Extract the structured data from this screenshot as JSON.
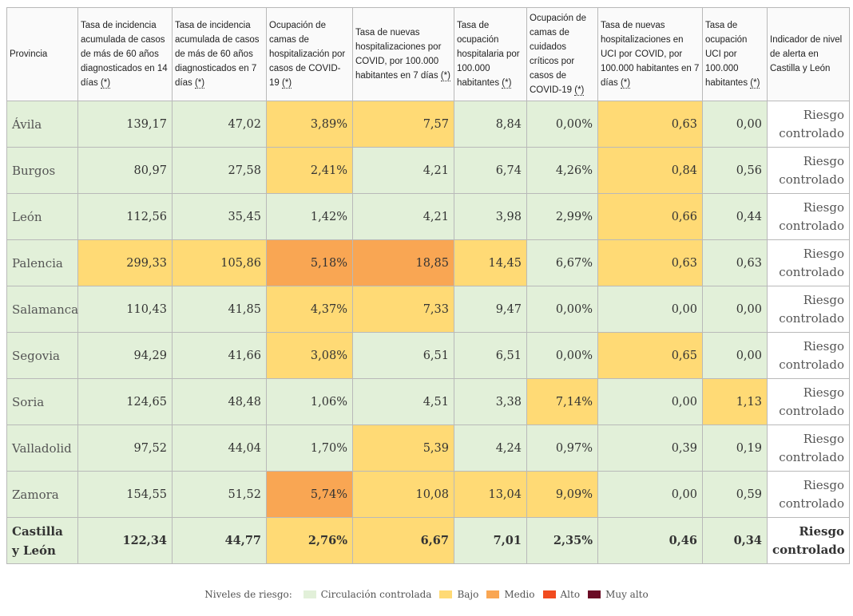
{
  "colors": {
    "green": "#e2f0d9",
    "yellow": "#ffda75",
    "orange": "#f9a653",
    "red": "#f14b1f",
    "darkred": "#6b0b25"
  },
  "header": {
    "provincia": "Provincia",
    "col1": "Tasa de incidencia acumulada de casos de más de 60 años diagnosticados en 14 días",
    "col2": "Tasa de incidencia acumulada de casos de más de 60 años diagnosticados en 7 días",
    "col3": "Ocupación de camas de hospitalización por casos de COVID-19",
    "col4": "Tasa de nuevas hospitalizaciones por COVID, por 100.000 habitantes en 7 días",
    "col5": "Tasa de ocupación hospitalaria por 100.000 habitantes",
    "col6": "Ocupación de camas de cuidados críticos por casos de COVID-19",
    "col7": "Tasa de nuevas hospitalizaciones en UCI por COVID, por 100.000 habitantes en 7 días",
    "col8": "Tasa de ocupación UCI por 100.000 habitantes",
    "alerta": "Indicador de nivel de alerta en Castilla y León",
    "note_mark": "(*)"
  },
  "rows": [
    {
      "provincia": "Ávila",
      "values": [
        "139,17",
        "47,02",
        "3,89%",
        "7,57",
        "8,84",
        "0,00%",
        "0,63",
        "0,00"
      ],
      "levels": [
        "g",
        "g",
        "y",
        "y",
        "g",
        "g",
        "y",
        "g"
      ],
      "alerta": "Riesgo controlado"
    },
    {
      "provincia": "Burgos",
      "values": [
        "80,97",
        "27,58",
        "2,41%",
        "4,21",
        "6,74",
        "4,26%",
        "0,84",
        "0,56"
      ],
      "levels": [
        "g",
        "g",
        "y",
        "g",
        "g",
        "g",
        "y",
        "g"
      ],
      "alerta": "Riesgo controlado"
    },
    {
      "provincia": "León",
      "values": [
        "112,56",
        "35,45",
        "1,42%",
        "4,21",
        "3,98",
        "2,99%",
        "0,66",
        "0,44"
      ],
      "levels": [
        "g",
        "g",
        "g",
        "g",
        "g",
        "g",
        "y",
        "g"
      ],
      "alerta": "Riesgo controlado"
    },
    {
      "provincia": "Palencia",
      "values": [
        "299,33",
        "105,86",
        "5,18%",
        "18,85",
        "14,45",
        "6,67%",
        "0,63",
        "0,63"
      ],
      "levels": [
        "y",
        "y",
        "o",
        "o",
        "y",
        "g",
        "y",
        "g"
      ],
      "alerta": "Riesgo controlado"
    },
    {
      "provincia": "Salamanca",
      "values": [
        "110,43",
        "41,85",
        "4,37%",
        "7,33",
        "9,47",
        "0,00%",
        "0,00",
        "0,00"
      ],
      "levels": [
        "g",
        "g",
        "y",
        "y",
        "g",
        "g",
        "g",
        "g"
      ],
      "alerta": "Riesgo controlado"
    },
    {
      "provincia": "Segovia",
      "values": [
        "94,29",
        "41,66",
        "3,08%",
        "6,51",
        "6,51",
        "0,00%",
        "0,65",
        "0,00"
      ],
      "levels": [
        "g",
        "g",
        "y",
        "g",
        "g",
        "g",
        "y",
        "g"
      ],
      "alerta": "Riesgo controlado"
    },
    {
      "provincia": "Soria",
      "values": [
        "124,65",
        "48,48",
        "1,06%",
        "4,51",
        "3,38",
        "7,14%",
        "0,00",
        "1,13"
      ],
      "levels": [
        "g",
        "g",
        "g",
        "g",
        "g",
        "y",
        "g",
        "y"
      ],
      "alerta": "Riesgo controlado"
    },
    {
      "provincia": "Valladolid",
      "values": [
        "97,52",
        "44,04",
        "1,70%",
        "5,39",
        "4,24",
        "0,97%",
        "0,39",
        "0,19"
      ],
      "levels": [
        "g",
        "g",
        "g",
        "y",
        "g",
        "g",
        "g",
        "g"
      ],
      "alerta": "Riesgo controlado"
    },
    {
      "provincia": "Zamora",
      "values": [
        "154,55",
        "51,52",
        "5,74%",
        "10,08",
        "13,04",
        "9,09%",
        "0,00",
        "0,59"
      ],
      "levels": [
        "g",
        "g",
        "o",
        "y",
        "y",
        "y",
        "g",
        "g"
      ],
      "alerta": "Riesgo controlado"
    },
    {
      "provincia": "Castilla y León",
      "values": [
        "122,34",
        "44,77",
        "2,76%",
        "6,67",
        "7,01",
        "2,35%",
        "0,46",
        "0,34"
      ],
      "levels": [
        "g",
        "g",
        "y",
        "y",
        "g",
        "g",
        "g",
        "g"
      ],
      "alerta": "Riesgo controlado",
      "total": true
    }
  ],
  "legend": {
    "title": "Niveles de riesgo:",
    "items": [
      {
        "label": "Circulación controlada",
        "color": "#e2f0d9"
      },
      {
        "label": "Bajo",
        "color": "#ffda75"
      },
      {
        "label": "Medio",
        "color": "#f9a653"
      },
      {
        "label": "Alto",
        "color": "#f14b1f"
      },
      {
        "label": "Muy alto",
        "color": "#6b0b25"
      }
    ]
  }
}
